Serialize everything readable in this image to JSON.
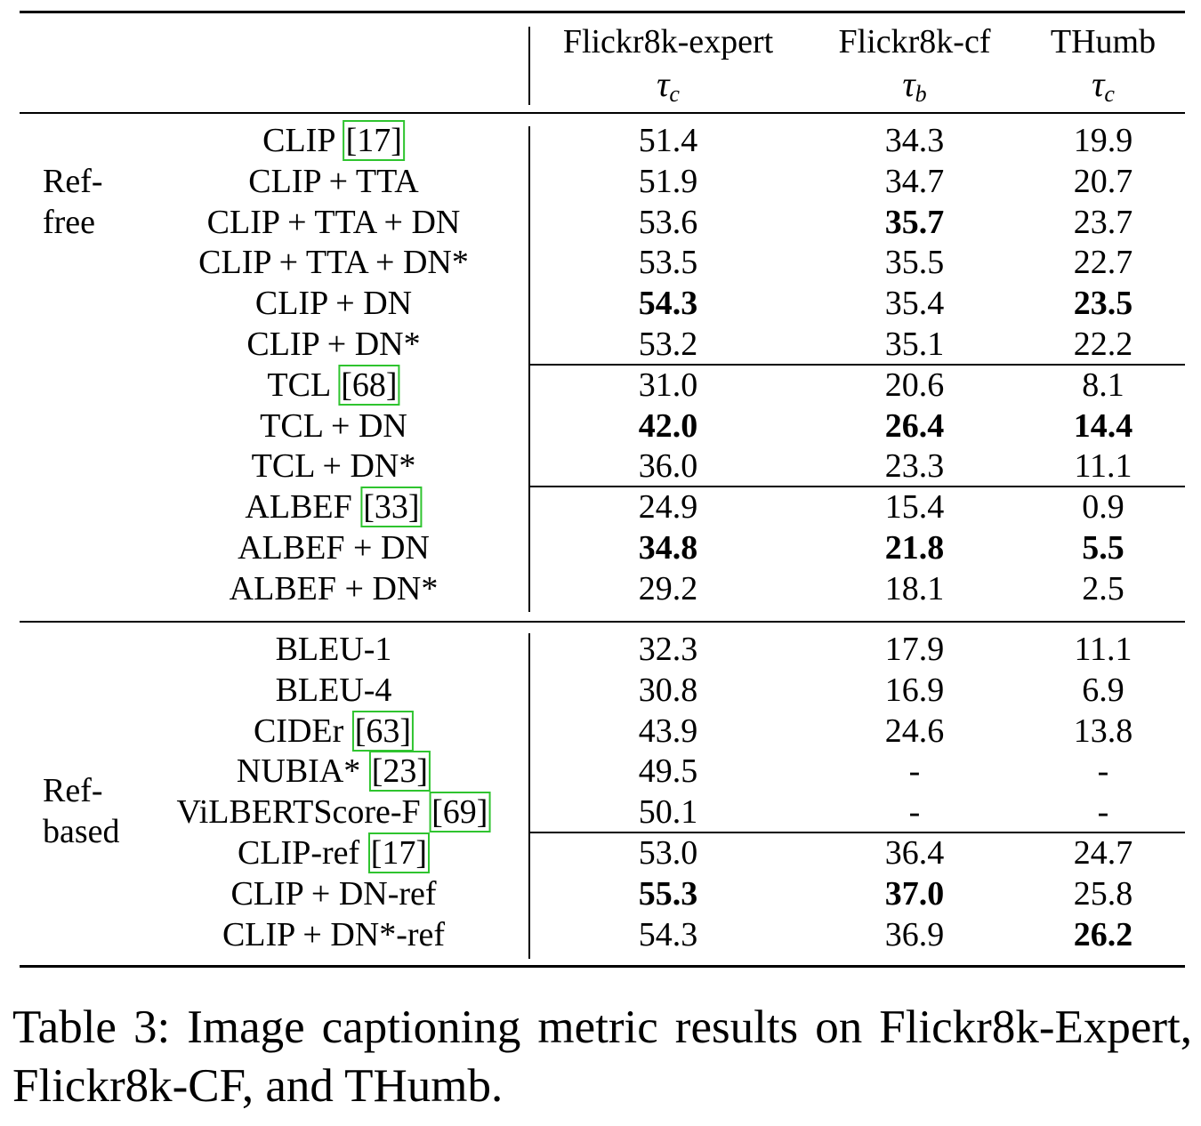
{
  "table": {
    "columns": [
      {
        "title": "Flickr8k-expert",
        "symbol": "τ",
        "sub": "c"
      },
      {
        "title": "Flickr8k-cf",
        "symbol": "τ",
        "sub": "b"
      },
      {
        "title": "THumb",
        "symbol": "τ",
        "sub": "c"
      }
    ],
    "groups": [
      {
        "label": [
          "Ref-",
          "free"
        ],
        "blocks": [
          {
            "rows": [
              {
                "method": "CLIP",
                "cite": "[17]",
                "values": [
                  "51.4",
                  "34.3",
                  "19.9"
                ],
                "bold": [
                  false,
                  false,
                  false
                ]
              },
              {
                "method": "CLIP + TTA",
                "values": [
                  "51.9",
                  "34.7",
                  "20.7"
                ],
                "bold": [
                  false,
                  false,
                  false
                ]
              },
              {
                "method": "CLIP + TTA + DN",
                "values": [
                  "53.6",
                  "35.7",
                  "23.7"
                ],
                "bold": [
                  false,
                  true,
                  false
                ]
              },
              {
                "method": "CLIP + TTA + DN*",
                "values": [
                  "53.5",
                  "35.5",
                  "22.7"
                ],
                "bold": [
                  false,
                  false,
                  false
                ]
              },
              {
                "method": "CLIP + DN",
                "values": [
                  "54.3",
                  "35.4",
                  "23.5"
                ],
                "bold": [
                  true,
                  false,
                  true
                ]
              },
              {
                "method": "CLIP + DN*",
                "values": [
                  "53.2",
                  "35.1",
                  "22.2"
                ],
                "bold": [
                  false,
                  false,
                  false
                ]
              }
            ]
          },
          {
            "rows": [
              {
                "method": "TCL",
                "cite": "[68]",
                "values": [
                  "31.0",
                  "20.6",
                  "8.1"
                ],
                "bold": [
                  false,
                  false,
                  false
                ]
              },
              {
                "method": "TCL + DN",
                "values": [
                  "42.0",
                  "26.4",
                  "14.4"
                ],
                "bold": [
                  true,
                  true,
                  true
                ]
              },
              {
                "method": "TCL + DN*",
                "values": [
                  "36.0",
                  "23.3",
                  "11.1"
                ],
                "bold": [
                  false,
                  false,
                  false
                ]
              }
            ]
          },
          {
            "rows": [
              {
                "method": "ALBEF",
                "cite": "[33]",
                "values": [
                  "24.9",
                  "15.4",
                  "0.9"
                ],
                "bold": [
                  false,
                  false,
                  false
                ]
              },
              {
                "method": "ALBEF + DN",
                "values": [
                  "34.8",
                  "21.8",
                  "5.5"
                ],
                "bold": [
                  true,
                  true,
                  true
                ]
              },
              {
                "method": "ALBEF + DN*",
                "values": [
                  "29.2",
                  "18.1",
                  "2.5"
                ],
                "bold": [
                  false,
                  false,
                  false
                ]
              }
            ]
          }
        ]
      },
      {
        "label": [
          "Ref-",
          "based"
        ],
        "blocks": [
          {
            "rows": [
              {
                "method": "BLEU-1",
                "values": [
                  "32.3",
                  "17.9",
                  "11.1"
                ],
                "bold": [
                  false,
                  false,
                  false
                ]
              },
              {
                "method": "BLEU-4",
                "values": [
                  "30.8",
                  "16.9",
                  "6.9"
                ],
                "bold": [
                  false,
                  false,
                  false
                ]
              },
              {
                "method": "CIDEr",
                "cite": "[63]",
                "values": [
                  "43.9",
                  "24.6",
                  "13.8"
                ],
                "bold": [
                  false,
                  false,
                  false
                ]
              },
              {
                "method": "NUBIA*",
                "cite": "[23]",
                "values": [
                  "49.5",
                  "-",
                  "-"
                ],
                "bold": [
                  false,
                  false,
                  false
                ]
              },
              {
                "method": "ViLBERTScore-F",
                "cite": "[69]",
                "values": [
                  "50.1",
                  "-",
                  "-"
                ],
                "bold": [
                  false,
                  false,
                  false
                ]
              }
            ]
          },
          {
            "rows": [
              {
                "method": "CLIP-ref",
                "cite": "[17]",
                "values": [
                  "53.0",
                  "36.4",
                  "24.7"
                ],
                "bold": [
                  false,
                  false,
                  false
                ]
              },
              {
                "method": "CLIP + DN-ref",
                "values": [
                  "55.3",
                  "37.0",
                  "25.8"
                ],
                "bold": [
                  true,
                  true,
                  false
                ]
              },
              {
                "method": "CLIP + DN*-ref",
                "values": [
                  "54.3",
                  "36.9",
                  "26.2"
                ],
                "bold": [
                  false,
                  false,
                  true
                ]
              }
            ]
          }
        ]
      }
    ]
  },
  "caption": "Table 3: Image captioning metric results on Flickr8k-Expert, Flickr8k-CF, and THumb."
}
